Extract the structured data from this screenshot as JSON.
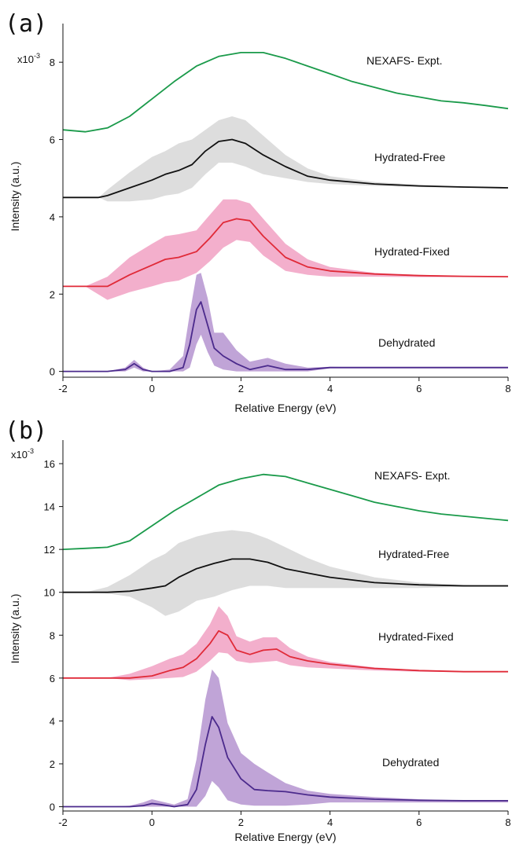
{
  "chart_data": [
    {
      "type": "line",
      "panel_label": "(a)",
      "xlabel": "Relative Energy (eV)",
      "ylabel": "Intensity (a.u.)",
      "xlim": [
        -2,
        8
      ],
      "ylim": [
        -0.15,
        9.0
      ],
      "scale_label": "x10",
      "scale_exponent": "-3",
      "x_ticks": [
        {
          "value": -2,
          "label": "-2"
        },
        {
          "value": 0,
          "label": "0"
        },
        {
          "value": 2,
          "label": "2"
        },
        {
          "value": 4,
          "label": "4"
        },
        {
          "value": 6,
          "label": "6"
        },
        {
          "value": 8,
          "label": "8"
        }
      ],
      "y_ticks": [
        {
          "value": 0,
          "label": "0"
        },
        {
          "value": 2,
          "label": "2"
        },
        {
          "value": 4,
          "label": "4"
        },
        {
          "value": 6,
          "label": "6"
        },
        {
          "value": 8,
          "label": "8"
        }
      ],
      "series": [
        {
          "name": "NEXAFS- Expt.",
          "color": "#1a9a4a",
          "x": [
            -2.0,
            -1.5,
            -1.0,
            -0.5,
            0.0,
            0.5,
            1.0,
            1.5,
            2.0,
            2.5,
            3.0,
            3.5,
            4.0,
            4.5,
            5.0,
            5.5,
            6.0,
            6.5,
            7.0,
            7.5,
            8.0
          ],
          "y": [
            6.25,
            6.2,
            6.3,
            6.6,
            7.05,
            7.5,
            7.9,
            8.15,
            8.25,
            8.25,
            8.1,
            7.9,
            7.7,
            7.5,
            7.35,
            7.2,
            7.1,
            7.0,
            6.95,
            6.88,
            6.8
          ]
        },
        {
          "name": "Hydrated-Free",
          "color": "#111111",
          "band_color": "#d9d9d9",
          "x": [
            -2.0,
            -1.5,
            -1.2,
            -1.0,
            -0.5,
            0.0,
            0.3,
            0.6,
            0.9,
            1.2,
            1.5,
            1.8,
            2.1,
            2.5,
            3.0,
            3.5,
            4.0,
            5.0,
            6.0,
            7.0,
            8.0
          ],
          "y": [
            4.5,
            4.5,
            4.5,
            4.55,
            4.75,
            4.95,
            5.1,
            5.2,
            5.35,
            5.7,
            5.95,
            6.0,
            5.9,
            5.6,
            5.3,
            5.05,
            4.95,
            4.85,
            4.8,
            4.77,
            4.75
          ],
          "band_upper": [
            4.5,
            4.5,
            4.5,
            4.7,
            5.15,
            5.55,
            5.7,
            5.9,
            6.0,
            6.25,
            6.5,
            6.6,
            6.5,
            6.1,
            5.6,
            5.25,
            5.05,
            4.9,
            4.83,
            4.78,
            4.75
          ],
          "band_lower": [
            4.5,
            4.5,
            4.5,
            4.4,
            4.4,
            4.45,
            4.55,
            4.6,
            4.75,
            5.1,
            5.4,
            5.4,
            5.3,
            5.1,
            5.0,
            4.9,
            4.85,
            4.8,
            4.77,
            4.75,
            4.75
          ]
        },
        {
          "name": "Hydrated-Fixed",
          "color": "#e02a38",
          "band_color": "#f2a6c6",
          "x": [
            -2.0,
            -1.5,
            -1.0,
            -0.5,
            0.0,
            0.3,
            0.6,
            1.0,
            1.3,
            1.6,
            1.9,
            2.2,
            2.5,
            3.0,
            3.5,
            4.0,
            5.0,
            6.0,
            7.0,
            8.0
          ],
          "y": [
            2.2,
            2.2,
            2.2,
            2.5,
            2.75,
            2.9,
            2.95,
            3.1,
            3.45,
            3.85,
            3.95,
            3.9,
            3.5,
            2.95,
            2.7,
            2.6,
            2.52,
            2.48,
            2.46,
            2.45
          ],
          "band_upper": [
            2.2,
            2.2,
            2.45,
            2.95,
            3.3,
            3.5,
            3.55,
            3.65,
            4.05,
            4.45,
            4.45,
            4.35,
            3.95,
            3.3,
            2.9,
            2.7,
            2.55,
            2.5,
            2.47,
            2.45
          ],
          "band_lower": [
            2.2,
            2.2,
            1.85,
            2.05,
            2.2,
            2.3,
            2.35,
            2.55,
            2.85,
            3.2,
            3.4,
            3.35,
            3.0,
            2.6,
            2.5,
            2.45,
            2.45,
            2.44,
            2.44,
            2.44
          ]
        },
        {
          "name": "Dehydrated",
          "color": "#4b2a8c",
          "band_color": "#b99ad3",
          "x": [
            -2.0,
            -1.0,
            -0.6,
            -0.4,
            -0.2,
            0.0,
            0.4,
            0.7,
            0.85,
            1.0,
            1.1,
            1.25,
            1.4,
            1.6,
            1.9,
            2.2,
            2.6,
            3.0,
            3.5,
            4.0,
            5.0,
            6.0,
            7.0,
            8.0
          ],
          "y": [
            0.0,
            0.0,
            0.05,
            0.2,
            0.05,
            0.0,
            0.0,
            0.1,
            0.7,
            1.6,
            1.8,
            1.2,
            0.6,
            0.4,
            0.2,
            0.05,
            0.15,
            0.05,
            0.05,
            0.1,
            0.1,
            0.1,
            0.1,
            0.1
          ],
          "band_upper": [
            0.0,
            0.0,
            0.1,
            0.3,
            0.1,
            0.0,
            0.05,
            0.4,
            1.5,
            2.5,
            2.55,
            1.9,
            1.0,
            1.0,
            0.55,
            0.25,
            0.35,
            0.2,
            0.1,
            0.12,
            0.1,
            0.1,
            0.1,
            0.1
          ],
          "band_lower": [
            0.0,
            0.0,
            0.0,
            0.1,
            0.0,
            0.0,
            0.0,
            0.0,
            0.1,
            0.7,
            0.95,
            0.5,
            0.15,
            0.05,
            0.0,
            0.0,
            0.0,
            0.0,
            0.0,
            0.08,
            0.08,
            0.08,
            0.08,
            0.08
          ]
        }
      ]
    },
    {
      "type": "line",
      "panel_label": "(b)",
      "xlabel": "Relative Energy (eV)",
      "ylabel": "Intensity (a.u.)",
      "xlim": [
        -2,
        8
      ],
      "ylim": [
        -0.2,
        17.1
      ],
      "scale_label": "x10",
      "scale_exponent": "-3",
      "x_ticks": [
        {
          "value": -2,
          "label": "-2"
        },
        {
          "value": 0,
          "label": "0"
        },
        {
          "value": 2,
          "label": "2"
        },
        {
          "value": 4,
          "label": "4"
        },
        {
          "value": 6,
          "label": "6"
        },
        {
          "value": 8,
          "label": "8"
        }
      ],
      "y_ticks": [
        {
          "value": 0,
          "label": "0"
        },
        {
          "value": 2,
          "label": "2"
        },
        {
          "value": 4,
          "label": "4"
        },
        {
          "value": 6,
          "label": "6"
        },
        {
          "value": 8,
          "label": "8"
        },
        {
          "value": 10,
          "label": "10"
        },
        {
          "value": 12,
          "label": "12"
        },
        {
          "value": 14,
          "label": "14"
        },
        {
          "value": 16,
          "label": "16"
        }
      ],
      "series": [
        {
          "name": "NEXAFS- Expt.",
          "color": "#1a9a4a",
          "x": [
            -2.0,
            -1.5,
            -1.0,
            -0.5,
            0.0,
            0.5,
            1.0,
            1.5,
            2.0,
            2.5,
            3.0,
            3.5,
            4.0,
            4.5,
            5.0,
            5.5,
            6.0,
            6.5,
            7.0,
            7.5,
            8.0
          ],
          "y": [
            12.0,
            12.05,
            12.1,
            12.4,
            13.1,
            13.8,
            14.4,
            15.0,
            15.3,
            15.5,
            15.4,
            15.1,
            14.8,
            14.5,
            14.2,
            14.0,
            13.8,
            13.65,
            13.55,
            13.45,
            13.35
          ]
        },
        {
          "name": "Hydrated-Free",
          "color": "#111111",
          "band_color": "#d9d9d9",
          "x": [
            -2.0,
            -1.5,
            -1.0,
            -0.5,
            0.0,
            0.3,
            0.6,
            1.0,
            1.4,
            1.8,
            2.2,
            2.6,
            3.0,
            3.5,
            4.0,
            5.0,
            6.0,
            7.0,
            8.0
          ],
          "y": [
            10.0,
            10.0,
            10.0,
            10.05,
            10.2,
            10.3,
            10.7,
            11.1,
            11.35,
            11.55,
            11.55,
            11.4,
            11.1,
            10.9,
            10.7,
            10.45,
            10.35,
            10.3,
            10.3
          ],
          "band_upper": [
            10.0,
            10.0,
            10.25,
            10.8,
            11.5,
            11.8,
            12.3,
            12.6,
            12.8,
            12.9,
            12.8,
            12.5,
            12.1,
            11.6,
            11.2,
            10.7,
            10.45,
            10.35,
            10.3
          ],
          "band_lower": [
            10.0,
            10.0,
            9.95,
            9.8,
            9.3,
            8.9,
            9.1,
            9.6,
            9.8,
            10.1,
            10.3,
            10.3,
            10.2,
            10.2,
            10.2,
            10.2,
            10.2,
            10.25,
            10.25
          ]
        },
        {
          "name": "Hydrated-Fixed",
          "color": "#e02a38",
          "band_color": "#f2a6c6",
          "x": [
            -2.0,
            -1.0,
            -0.5,
            0.0,
            0.4,
            0.7,
            1.0,
            1.3,
            1.5,
            1.7,
            1.9,
            2.2,
            2.5,
            2.8,
            3.1,
            3.5,
            4.0,
            5.0,
            6.0,
            7.0,
            8.0
          ],
          "y": [
            6.0,
            6.0,
            6.0,
            6.1,
            6.35,
            6.5,
            6.9,
            7.6,
            8.2,
            8.0,
            7.3,
            7.1,
            7.3,
            7.35,
            7.0,
            6.8,
            6.65,
            6.45,
            6.35,
            6.3,
            6.3
          ],
          "band_upper": [
            6.0,
            6.0,
            6.2,
            6.55,
            6.9,
            7.1,
            7.6,
            8.5,
            9.35,
            8.9,
            7.95,
            7.7,
            7.9,
            7.9,
            7.4,
            7.0,
            6.75,
            6.5,
            6.38,
            6.32,
            6.3
          ],
          "band_lower": [
            6.0,
            6.0,
            5.9,
            5.95,
            6.0,
            6.05,
            6.3,
            6.8,
            7.2,
            7.15,
            6.8,
            6.7,
            6.75,
            6.8,
            6.6,
            6.5,
            6.45,
            6.35,
            6.3,
            6.28,
            6.28
          ]
        },
        {
          "name": "Dehydrated",
          "color": "#4b2a8c",
          "band_color": "#b99ad3",
          "x": [
            -2.0,
            -1.0,
            -0.5,
            -0.2,
            0.0,
            0.2,
            0.5,
            0.8,
            1.0,
            1.2,
            1.35,
            1.5,
            1.7,
            2.0,
            2.3,
            2.6,
            3.0,
            3.5,
            4.0,
            5.0,
            6.0,
            7.0,
            8.0
          ],
          "y": [
            0.0,
            0.0,
            0.0,
            0.05,
            0.15,
            0.1,
            0.0,
            0.1,
            0.8,
            2.9,
            4.2,
            3.7,
            2.3,
            1.3,
            0.8,
            0.75,
            0.7,
            0.55,
            0.45,
            0.35,
            0.3,
            0.28,
            0.28
          ],
          "band_upper": [
            0.0,
            0.0,
            0.05,
            0.2,
            0.35,
            0.25,
            0.1,
            0.35,
            2.2,
            5.0,
            6.4,
            6.0,
            3.9,
            2.5,
            2.0,
            1.6,
            1.1,
            0.75,
            0.6,
            0.45,
            0.35,
            0.3,
            0.28
          ],
          "band_lower": [
            0.0,
            0.0,
            0.0,
            0.0,
            0.0,
            0.0,
            0.0,
            0.0,
            0.0,
            0.5,
            1.2,
            0.9,
            0.3,
            0.1,
            0.05,
            0.05,
            0.05,
            0.1,
            0.2,
            0.2,
            0.2,
            0.2,
            0.2
          ]
        }
      ]
    }
  ]
}
